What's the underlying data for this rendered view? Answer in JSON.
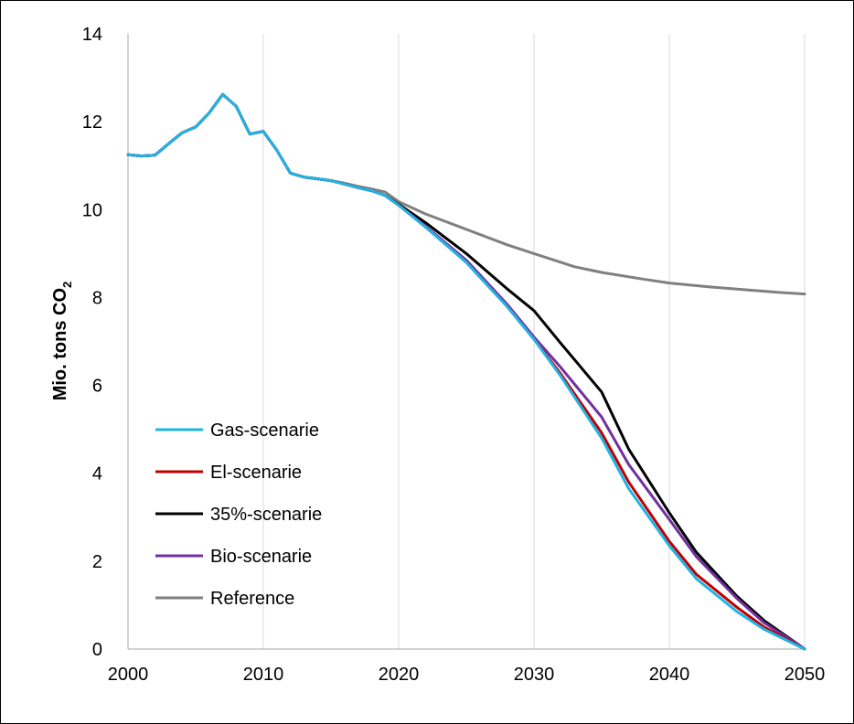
{
  "chart_data": {
    "type": "line",
    "title": "",
    "xlabel": "",
    "ylabel": "Mio. tons CO",
    "ylabel_subscript": "2",
    "xlim": [
      2000,
      2050
    ],
    "ylim": [
      0,
      14
    ],
    "x_ticks": [
      2000,
      2010,
      2020,
      2030,
      2040,
      2050
    ],
    "y_ticks": [
      0,
      2,
      4,
      6,
      8,
      10,
      12,
      14
    ],
    "grid": "vertical",
    "legend_position": "lower-left",
    "series": [
      {
        "name": "Gas-scenarie",
        "color": "#1fb4e6",
        "points": [
          [
            2000,
            11.25
          ],
          [
            2001,
            11.22
          ],
          [
            2002,
            11.24
          ],
          [
            2003,
            11.5
          ],
          [
            2004,
            11.75
          ],
          [
            2005,
            11.88
          ],
          [
            2006,
            12.2
          ],
          [
            2007,
            12.62
          ],
          [
            2008,
            12.35
          ],
          [
            2009,
            11.72
          ],
          [
            2010,
            11.78
          ],
          [
            2011,
            11.35
          ],
          [
            2012,
            10.83
          ],
          [
            2013,
            10.74
          ],
          [
            2014,
            10.7
          ],
          [
            2015,
            10.66
          ],
          [
            2016,
            10.58
          ],
          [
            2017,
            10.5
          ],
          [
            2018,
            10.43
          ],
          [
            2019,
            10.32
          ],
          [
            2020,
            10.1
          ],
          [
            2022,
            9.6
          ],
          [
            2025,
            8.8
          ],
          [
            2028,
            7.8
          ],
          [
            2030,
            7.05
          ],
          [
            2032,
            6.2
          ],
          [
            2035,
            4.8
          ],
          [
            2037,
            3.65
          ],
          [
            2040,
            2.35
          ],
          [
            2042,
            1.6
          ],
          [
            2045,
            0.85
          ],
          [
            2047,
            0.45
          ],
          [
            2050,
            0.0
          ]
        ]
      },
      {
        "name": "El-scenarie",
        "color": "#c00000",
        "points": [
          [
            2000,
            11.25
          ],
          [
            2001,
            11.22
          ],
          [
            2002,
            11.24
          ],
          [
            2003,
            11.5
          ],
          [
            2004,
            11.75
          ],
          [
            2005,
            11.88
          ],
          [
            2006,
            12.2
          ],
          [
            2007,
            12.62
          ],
          [
            2008,
            12.35
          ],
          [
            2009,
            11.72
          ],
          [
            2010,
            11.78
          ],
          [
            2011,
            11.35
          ],
          [
            2012,
            10.83
          ],
          [
            2013,
            10.74
          ],
          [
            2014,
            10.7
          ],
          [
            2015,
            10.66
          ],
          [
            2016,
            10.58
          ],
          [
            2017,
            10.5
          ],
          [
            2018,
            10.43
          ],
          [
            2019,
            10.32
          ],
          [
            2020,
            10.1
          ],
          [
            2022,
            9.6
          ],
          [
            2025,
            8.8
          ],
          [
            2028,
            7.8
          ],
          [
            2030,
            7.05
          ],
          [
            2032,
            6.25
          ],
          [
            2035,
            4.92
          ],
          [
            2037,
            3.8
          ],
          [
            2040,
            2.45
          ],
          [
            2042,
            1.7
          ],
          [
            2045,
            0.95
          ],
          [
            2047,
            0.5
          ],
          [
            2050,
            0.0
          ]
        ]
      },
      {
        "name": "35%-scenarie",
        "color": "#000000",
        "points": [
          [
            2000,
            11.25
          ],
          [
            2001,
            11.22
          ],
          [
            2002,
            11.24
          ],
          [
            2003,
            11.5
          ],
          [
            2004,
            11.75
          ],
          [
            2005,
            11.88
          ],
          [
            2006,
            12.2
          ],
          [
            2007,
            12.62
          ],
          [
            2008,
            12.35
          ],
          [
            2009,
            11.72
          ],
          [
            2010,
            11.78
          ],
          [
            2011,
            11.35
          ],
          [
            2012,
            10.83
          ],
          [
            2013,
            10.74
          ],
          [
            2014,
            10.7
          ],
          [
            2015,
            10.66
          ],
          [
            2016,
            10.58
          ],
          [
            2017,
            10.5
          ],
          [
            2018,
            10.43
          ],
          [
            2019,
            10.32
          ],
          [
            2020,
            10.12
          ],
          [
            2022,
            9.7
          ],
          [
            2025,
            9.0
          ],
          [
            2028,
            8.2
          ],
          [
            2030,
            7.7
          ],
          [
            2032,
            6.95
          ],
          [
            2035,
            5.85
          ],
          [
            2037,
            4.55
          ],
          [
            2040,
            3.1
          ],
          [
            2042,
            2.2
          ],
          [
            2045,
            1.2
          ],
          [
            2047,
            0.65
          ],
          [
            2050,
            0.0
          ]
        ]
      },
      {
        "name": "Bio-scenarie",
        "color": "#7030a0",
        "points": [
          [
            2000,
            11.25
          ],
          [
            2001,
            11.22
          ],
          [
            2002,
            11.24
          ],
          [
            2003,
            11.5
          ],
          [
            2004,
            11.75
          ],
          [
            2005,
            11.88
          ],
          [
            2006,
            12.2
          ],
          [
            2007,
            12.62
          ],
          [
            2008,
            12.35
          ],
          [
            2009,
            11.72
          ],
          [
            2010,
            11.78
          ],
          [
            2011,
            11.35
          ],
          [
            2012,
            10.83
          ],
          [
            2013,
            10.74
          ],
          [
            2014,
            10.7
          ],
          [
            2015,
            10.66
          ],
          [
            2016,
            10.58
          ],
          [
            2017,
            10.5
          ],
          [
            2018,
            10.43
          ],
          [
            2019,
            10.32
          ],
          [
            2020,
            10.1
          ],
          [
            2022,
            9.62
          ],
          [
            2025,
            8.85
          ],
          [
            2028,
            7.85
          ],
          [
            2030,
            7.1
          ],
          [
            2032,
            6.4
          ],
          [
            2035,
            5.28
          ],
          [
            2037,
            4.2
          ],
          [
            2040,
            2.95
          ],
          [
            2042,
            2.1
          ],
          [
            2045,
            1.15
          ],
          [
            2047,
            0.6
          ],
          [
            2050,
            0.0
          ]
        ]
      },
      {
        "name": "Reference",
        "color": "#808080",
        "points": [
          [
            2000,
            11.25
          ],
          [
            2001,
            11.22
          ],
          [
            2002,
            11.24
          ],
          [
            2003,
            11.5
          ],
          [
            2004,
            11.75
          ],
          [
            2005,
            11.88
          ],
          [
            2006,
            12.2
          ],
          [
            2007,
            12.62
          ],
          [
            2008,
            12.35
          ],
          [
            2009,
            11.72
          ],
          [
            2010,
            11.78
          ],
          [
            2011,
            11.35
          ],
          [
            2012,
            10.83
          ],
          [
            2013,
            10.74
          ],
          [
            2014,
            10.7
          ],
          [
            2015,
            10.66
          ],
          [
            2016,
            10.6
          ],
          [
            2017,
            10.53
          ],
          [
            2018,
            10.47
          ],
          [
            2019,
            10.4
          ],
          [
            2020,
            10.18
          ],
          [
            2022,
            9.9
          ],
          [
            2025,
            9.55
          ],
          [
            2028,
            9.2
          ],
          [
            2030,
            9.0
          ],
          [
            2033,
            8.7
          ],
          [
            2035,
            8.57
          ],
          [
            2038,
            8.42
          ],
          [
            2040,
            8.33
          ],
          [
            2043,
            8.24
          ],
          [
            2045,
            8.19
          ],
          [
            2048,
            8.12
          ],
          [
            2050,
            8.08
          ]
        ]
      }
    ]
  }
}
